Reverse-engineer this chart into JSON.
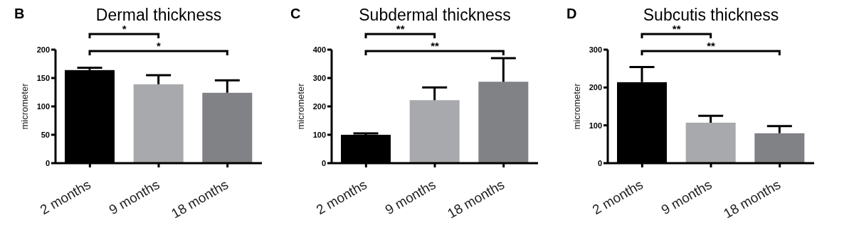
{
  "chart_data": [
    {
      "type": "bar",
      "title": "Dermal thickness",
      "ylabel": "micrometer",
      "categories": [
        "2 months",
        "9 months",
        "18 months"
      ],
      "values": [
        164,
        139,
        124
      ],
      "errors": [
        [
          164,
          168
        ],
        [
          139,
          155
        ],
        [
          124,
          146
        ]
      ],
      "colors": [
        "#000000",
        "#a7a9ac",
        "#808285"
      ],
      "ylim": [
        0,
        200
      ],
      "yticks": [
        0,
        50,
        100,
        150,
        200
      ],
      "grid": false,
      "legend": false,
      "annotations": [
        "B",
        "*",
        "*"
      ]
    },
    {
      "type": "bar",
      "title": "Subdermal thickness",
      "ylabel": "micrometer",
      "categories": [
        "2 months",
        "9 months",
        "18 months"
      ],
      "values": [
        100,
        222,
        287
      ],
      "errors": [
        [
          100,
          105
        ],
        [
          222,
          267
        ],
        [
          287,
          370
        ]
      ],
      "colors": [
        "#000000",
        "#a7a9ac",
        "#808285"
      ],
      "ylim": [
        0,
        400
      ],
      "yticks": [
        0,
        100,
        200,
        300,
        400
      ],
      "grid": false,
      "legend": false,
      "annotations": [
        "C",
        "**",
        "**"
      ]
    },
    {
      "type": "bar",
      "title": "Subcutis thickness",
      "ylabel": "micrometer",
      "categories": [
        "2 months",
        "9 months",
        "18 months"
      ],
      "values": [
        214,
        107,
        79
      ],
      "errors": [
        [
          214,
          254
        ],
        [
          107,
          125
        ],
        [
          79,
          98
        ]
      ],
      "colors": [
        "#000000",
        "#a7a9ac",
        "#808285"
      ],
      "ylim": [
        0,
        300
      ],
      "yticks": [
        0,
        100,
        200,
        300
      ],
      "grid": false,
      "legend": false,
      "annotations": [
        "D",
        "**",
        "**"
      ]
    }
  ]
}
